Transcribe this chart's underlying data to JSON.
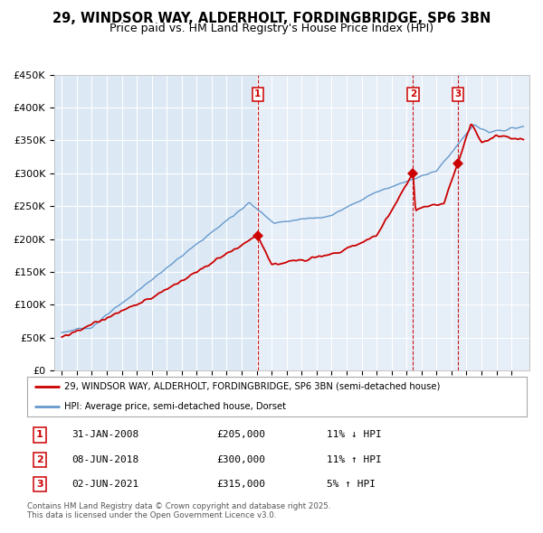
{
  "title1": "29, WINDSOR WAY, ALDERHOLT, FORDINGBRIDGE, SP6 3BN",
  "title2": "Price paid vs. HM Land Registry's House Price Index (HPI)",
  "background_color": "#dce9f5",
  "shaded_color": "#e8f0fa",
  "plot_bg": "#dce9f5",
  "grid_color": "#ffffff",
  "legend1": "29, WINDSOR WAY, ALDERHOLT, FORDINGBRIDGE, SP6 3BN (semi-detached house)",
  "legend2": "HPI: Average price, semi-detached house, Dorset",
  "red_color": "#cc0000",
  "blue_color": "#6699cc",
  "transactions": [
    {
      "num": 1,
      "date": "31-JAN-2008",
      "price": "£205,000",
      "hpi_diff": "11% ↓ HPI",
      "x": 2008.08
    },
    {
      "num": 2,
      "date": "08-JUN-2018",
      "price": "£300,000",
      "hpi_diff": "11% ↑ HPI",
      "x": 2018.44
    },
    {
      "num": 3,
      "date": "02-JUN-2021",
      "price": "£315,000",
      "hpi_diff": "5% ↑ HPI",
      "x": 2021.42
    }
  ],
  "footer": "Contains HM Land Registry data © Crown copyright and database right 2025.\nThis data is licensed under the Open Government Licence v3.0.",
  "ylim": [
    0,
    450000
  ],
  "xlim": [
    1994.5,
    2026.2
  ],
  "yticks": [
    0,
    50000,
    100000,
    150000,
    200000,
    250000,
    300000,
    350000,
    400000,
    450000
  ],
  "ytick_labels": [
    "£0",
    "£50K",
    "£100K",
    "£150K",
    "£200K",
    "£250K",
    "£300K",
    "£350K",
    "£400K",
    "£450K"
  ]
}
